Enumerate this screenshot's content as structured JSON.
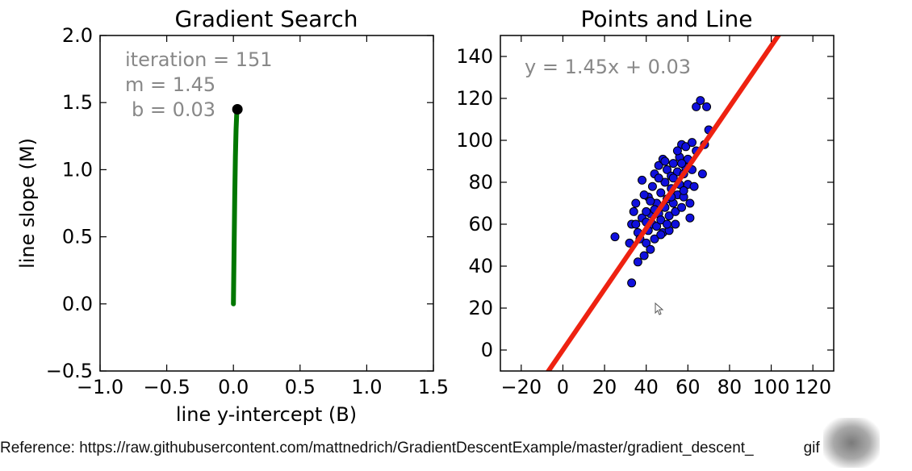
{
  "chart_data": [
    {
      "type": "line",
      "title": "Gradient Search",
      "xlabel": "line y-intercept (B)",
      "ylabel": "line slope (M)",
      "xlim": [
        -1.0,
        1.5
      ],
      "ylim": [
        -0.5,
        2.0
      ],
      "xticks": [
        "−1.0",
        "−0.5",
        "0.0",
        "0.5",
        "1.0",
        "1.5"
      ],
      "yticks": [
        "−0.5",
        "0.0",
        "0.5",
        "1.0",
        "1.5",
        "2.0"
      ],
      "annotation_lines": [
        "iteration = 151",
        "m = 1.45",
        "b = 0.03"
      ],
      "path": {
        "color": "#007700",
        "x": [
          0.0,
          0.005,
          0.01,
          0.015,
          0.02,
          0.025,
          0.03
        ],
        "y": [
          0.0,
          0.4,
          0.8,
          1.1,
          1.3,
          1.42,
          1.45
        ]
      },
      "current_point": {
        "x": 0.03,
        "y": 1.45,
        "color": "#000000"
      }
    },
    {
      "type": "scatter",
      "title": "Points and Line",
      "xlim": [
        -30,
        130
      ],
      "ylim": [
        -10,
        150
      ],
      "xticks": [
        "−20",
        "0",
        "20",
        "40",
        "60",
        "80",
        "100",
        "120"
      ],
      "yticks": [
        "0",
        "20",
        "40",
        "60",
        "80",
        "100",
        "120",
        "140"
      ],
      "annotation": "y = 1.45x + 0.03",
      "line": {
        "m": 1.45,
        "b": 0.03,
        "color": "#ee2211"
      },
      "point_color": "#1010dd",
      "points": [
        [
          25,
          54
        ],
        [
          32,
          51
        ],
        [
          33,
          32
        ],
        [
          33,
          60
        ],
        [
          34,
          66
        ],
        [
          35,
          70
        ],
        [
          36,
          56
        ],
        [
          36,
          42
        ],
        [
          37,
          53
        ],
        [
          38,
          63
        ],
        [
          38,
          81
        ],
        [
          39,
          45
        ],
        [
          40,
          61
        ],
        [
          40,
          51
        ],
        [
          41,
          57
        ],
        [
          41,
          73
        ],
        [
          42,
          65
        ],
        [
          42,
          48
        ],
        [
          43,
          60
        ],
        [
          43,
          78
        ],
        [
          44,
          84
        ],
        [
          44,
          53
        ],
        [
          45,
          70
        ],
        [
          45,
          59
        ],
        [
          46,
          88
        ],
        [
          46,
          65
        ],
        [
          47,
          62
        ],
        [
          47,
          75
        ],
        [
          48,
          91
        ],
        [
          48,
          56
        ],
        [
          49,
          80
        ],
        [
          49,
          68
        ],
        [
          50,
          72
        ],
        [
          50,
          86
        ],
        [
          51,
          64
        ],
        [
          51,
          57
        ],
        [
          52,
          83
        ],
        [
          52,
          77
        ],
        [
          53,
          70
        ],
        [
          53,
          89
        ],
        [
          54,
          66
        ],
        [
          54,
          60
        ],
        [
          55,
          85
        ],
        [
          55,
          74
        ],
        [
          56,
          92
        ],
        [
          56,
          79
        ],
        [
          57,
          68
        ],
        [
          57,
          98
        ],
        [
          58,
          84
        ],
        [
          58,
          73
        ],
        [
          59,
          87
        ],
        [
          59,
          97
        ],
        [
          60,
          79
        ],
        [
          60,
          91
        ],
        [
          61,
          70
        ],
        [
          61,
          63
        ],
        [
          62,
          86
        ],
        [
          62,
          99
        ],
        [
          63,
          78
        ],
        [
          64,
          95
        ],
        [
          64,
          116
        ],
        [
          66,
          119
        ],
        [
          67,
          84
        ],
        [
          68,
          98
        ],
        [
          69,
          116
        ],
        [
          70,
          105
        ],
        [
          35,
          60
        ],
        [
          39,
          74
        ],
        [
          44,
          67
        ],
        [
          47,
          55
        ],
        [
          50,
          60
        ],
        [
          52,
          73
        ],
        [
          55,
          95
        ],
        [
          58,
          76
        ],
        [
          46,
          82
        ],
        [
          42,
          71
        ],
        [
          49,
          90
        ],
        [
          53,
          82
        ],
        [
          57,
          89
        ],
        [
          40,
          66
        ]
      ]
    }
  ],
  "footer": {
    "reference": "Reference: https://raw.githubusercontent.com/mattnedrich/GradientDescentExample/master/gradient_descent_",
    "reference_tail": "gif"
  }
}
